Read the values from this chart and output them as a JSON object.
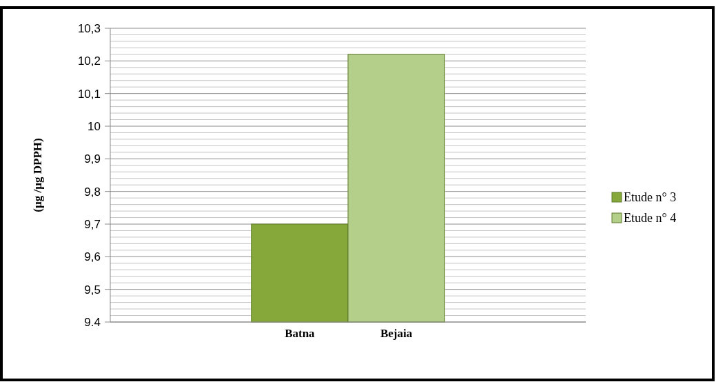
{
  "chart_data": {
    "type": "bar",
    "ylabel": "(µg /µg DPPH)",
    "categories": [
      "Batna",
      "Bejaia"
    ],
    "series": [
      {
        "name": "Etude n° 3",
        "color": "#86a83a",
        "values": [
          9.7,
          null
        ]
      },
      {
        "name": "Etude n° 4",
        "color": "#b3cf8a",
        "values": [
          null,
          10.22
        ]
      }
    ],
    "ylim": [
      9.4,
      10.3
    ],
    "yticks": [
      9.4,
      {
        "value": 9.42,
        "label": null
      },
      {
        "value": 9.44,
        "label": null
      },
      {
        "value": 9.46,
        "label": null
      },
      {
        "value": 9.48,
        "label": null
      },
      {
        "value": 9.5,
        "label": "9,5"
      },
      {
        "value": 9.52,
        "label": null
      },
      {
        "value": 9.54,
        "label": null
      },
      {
        "value": 9.56,
        "label": null
      },
      {
        "value": 9.58,
        "label": null
      },
      {
        "value": 9.6,
        "label": "9,6"
      },
      {
        "value": 9.62,
        "label": null
      },
      {
        "value": 9.64,
        "label": null
      },
      {
        "value": 9.66,
        "label": null
      },
      {
        "value": 9.68,
        "label": null
      },
      {
        "value": 9.7,
        "label": "9,7"
      },
      {
        "value": 9.72,
        "label": null
      },
      {
        "value": 9.74,
        "label": null
      },
      {
        "value": 9.76,
        "label": null
      },
      {
        "value": 9.78,
        "label": null
      },
      {
        "value": 9.8,
        "label": "9,8"
      },
      {
        "value": 9.82,
        "label": null
      },
      {
        "value": 9.84,
        "label": null
      },
      {
        "value": 9.86,
        "label": null
      },
      {
        "value": 9.88,
        "label": null
      },
      {
        "value": 9.9,
        "label": "9,9"
      },
      {
        "value": 9.92,
        "label": null
      },
      {
        "value": 9.94,
        "label": null
      },
      {
        "value": 9.96,
        "label": null
      },
      {
        "value": 9.98,
        "label": null
      },
      10,
      {
        "value": 10.02,
        "label": null
      },
      {
        "value": 10.04,
        "label": null
      },
      {
        "value": 10.06,
        "label": null
      },
      {
        "value": 10.08,
        "label": null
      },
      {
        "value": 10.1,
        "label": "10,1"
      },
      {
        "value": 10.12,
        "label": null
      },
      {
        "value": 10.14,
        "label": null
      },
      {
        "value": 10.16,
        "label": null
      },
      {
        "value": 10.18,
        "label": null
      },
      {
        "value": 10.2,
        "label": "10,2"
      },
      {
        "value": 10.22,
        "label": null
      },
      {
        "value": 10.24,
        "label": null
      },
      {
        "value": 10.26,
        "label": null
      },
      {
        "value": 10.28,
        "label": null
      },
      {
        "value": 10.3,
        "label": "10,3"
      }
    ],
    "grid": true,
    "legend": "right"
  }
}
